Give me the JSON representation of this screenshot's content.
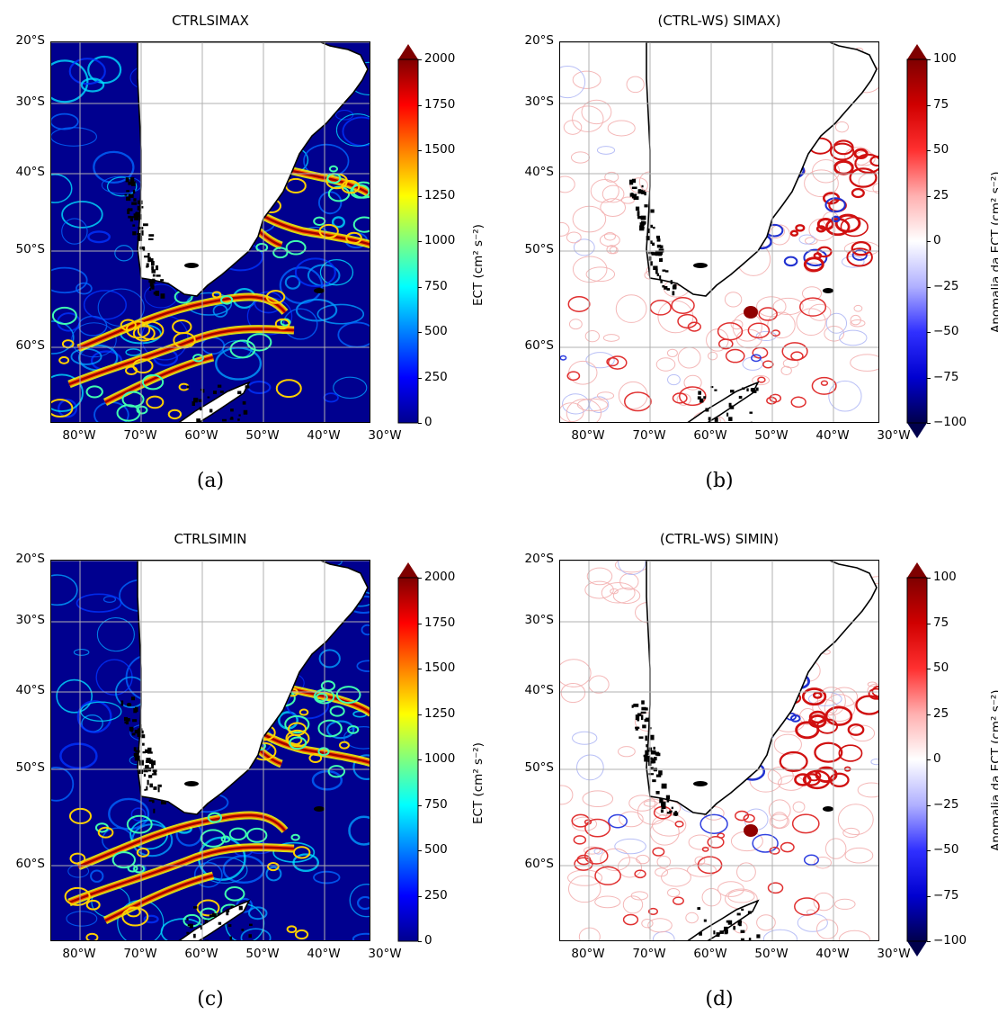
{
  "chart_data": [
    {
      "panel": "(a)",
      "type": "heatmap",
      "title": "CTRLSIMAX",
      "colormap": "jet",
      "xticks": [
        "80°W",
        "70°W",
        "60°W",
        "50°W",
        "40°W",
        "30°W"
      ],
      "yticks": [
        "20°S",
        "30°S",
        "40°S",
        "50°S",
        "60°S"
      ],
      "colorbar": {
        "label": "ECT (cm² s⁻²)",
        "ticks": [
          "2000",
          "1750",
          "1500",
          "1250",
          "1000",
          "750",
          "500",
          "250",
          "0"
        ],
        "range": [
          0,
          2000
        ],
        "extend": "max"
      },
      "grid": true
    },
    {
      "panel": "(b)",
      "type": "heatmap",
      "title": "(CTRL-WS) SIMAX)",
      "colormap": "seismic",
      "xticks": [
        "80°W",
        "70°W",
        "60°W",
        "50°W",
        "40°W",
        "30°W"
      ],
      "yticks": [
        "20°S",
        "30°S",
        "40°S",
        "50°S",
        "60°S"
      ],
      "colorbar": {
        "label": "Anomalia da ECT (cm² s⁻²)",
        "ticks": [
          "100",
          "75",
          "50",
          "25",
          "0",
          "−25",
          "−50",
          "−75",
          "−100"
        ],
        "range": [
          -100,
          100
        ],
        "extend": "both"
      },
      "grid": true
    },
    {
      "panel": "(c)",
      "type": "heatmap",
      "title": "CTRLSIMIN",
      "colormap": "jet",
      "xticks": [
        "80°W",
        "70°W",
        "60°W",
        "50°W",
        "40°W",
        "30°W"
      ],
      "yticks": [
        "20°S",
        "30°S",
        "40°S",
        "50°S",
        "60°S"
      ],
      "colorbar": {
        "label": "ECT (cm² s⁻²)",
        "ticks": [
          "2000",
          "1750",
          "1500",
          "1250",
          "1000",
          "750",
          "500",
          "250",
          "0"
        ],
        "range": [
          0,
          2000
        ],
        "extend": "max"
      },
      "grid": true
    },
    {
      "panel": "(d)",
      "type": "heatmap",
      "title": "(CTRL-WS) SIMIN)",
      "colormap": "seismic",
      "xticks": [
        "80°W",
        "70°W",
        "60°W",
        "50°W",
        "40°W",
        "30°W"
      ],
      "yticks": [
        "20°S",
        "30°S",
        "40°S",
        "50°S",
        "60°S"
      ],
      "colorbar": {
        "label": "Anomalia da ECT (cm² s⁻²)",
        "ticks": [
          "100",
          "75",
          "50",
          "25",
          "0",
          "−25",
          "−50",
          "−75",
          "−100"
        ],
        "range": [
          -100,
          100
        ],
        "extend": "both"
      },
      "grid": true
    }
  ],
  "colors": {
    "jet_low": "#00008f",
    "jet_mid": "#7fff7f",
    "jet_high": "#7f0000",
    "seismic_low": "#00004c",
    "seismic_mid": "#ffffff",
    "seismic_high": "#7f0000",
    "land": "#ffffff",
    "coast": "#000000",
    "grid": "#b0b0b0"
  }
}
